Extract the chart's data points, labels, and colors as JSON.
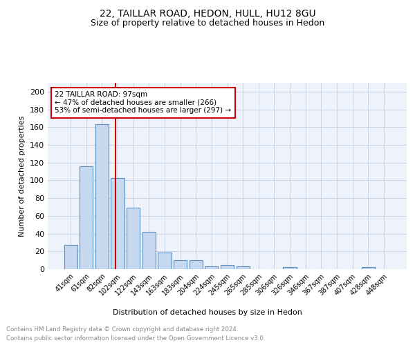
{
  "title": "22, TAILLAR ROAD, HEDON, HULL, HU12 8GU",
  "subtitle": "Size of property relative to detached houses in Hedon",
  "xlabel": "Distribution of detached houses by size in Hedon",
  "ylabel": "Number of detached properties",
  "bar_labels": [
    "41sqm",
    "61sqm",
    "82sqm",
    "102sqm",
    "122sqm",
    "143sqm",
    "163sqm",
    "183sqm",
    "204sqm",
    "224sqm",
    "245sqm",
    "265sqm",
    "285sqm",
    "306sqm",
    "326sqm",
    "346sqm",
    "367sqm",
    "387sqm",
    "407sqm",
    "428sqm",
    "448sqm"
  ],
  "bar_values": [
    27,
    116,
    163,
    103,
    69,
    42,
    19,
    10,
    10,
    3,
    5,
    3,
    0,
    0,
    2,
    0,
    0,
    0,
    0,
    2,
    0
  ],
  "bar_color": "#c6d9f0",
  "bar_edge_color": "#5a8fc2",
  "red_line_x": 2.85,
  "red_line_color": "#cc0000",
  "annotation_text": "22 TAILLAR ROAD: 97sqm\n← 47% of detached houses are smaller (266)\n53% of semi-detached houses are larger (297) →",
  "annotation_box_color": "white",
  "annotation_box_edge": "#cc0000",
  "ylim": [
    0,
    210
  ],
  "yticks": [
    0,
    20,
    40,
    60,
    80,
    100,
    120,
    140,
    160,
    180,
    200
  ],
  "footer1": "Contains HM Land Registry data © Crown copyright and database right 2024.",
  "footer2": "Contains public sector information licensed under the Open Government Licence v3.0.",
  "bg_color": "#edf2fb",
  "grid_color": "#c8d4e8"
}
